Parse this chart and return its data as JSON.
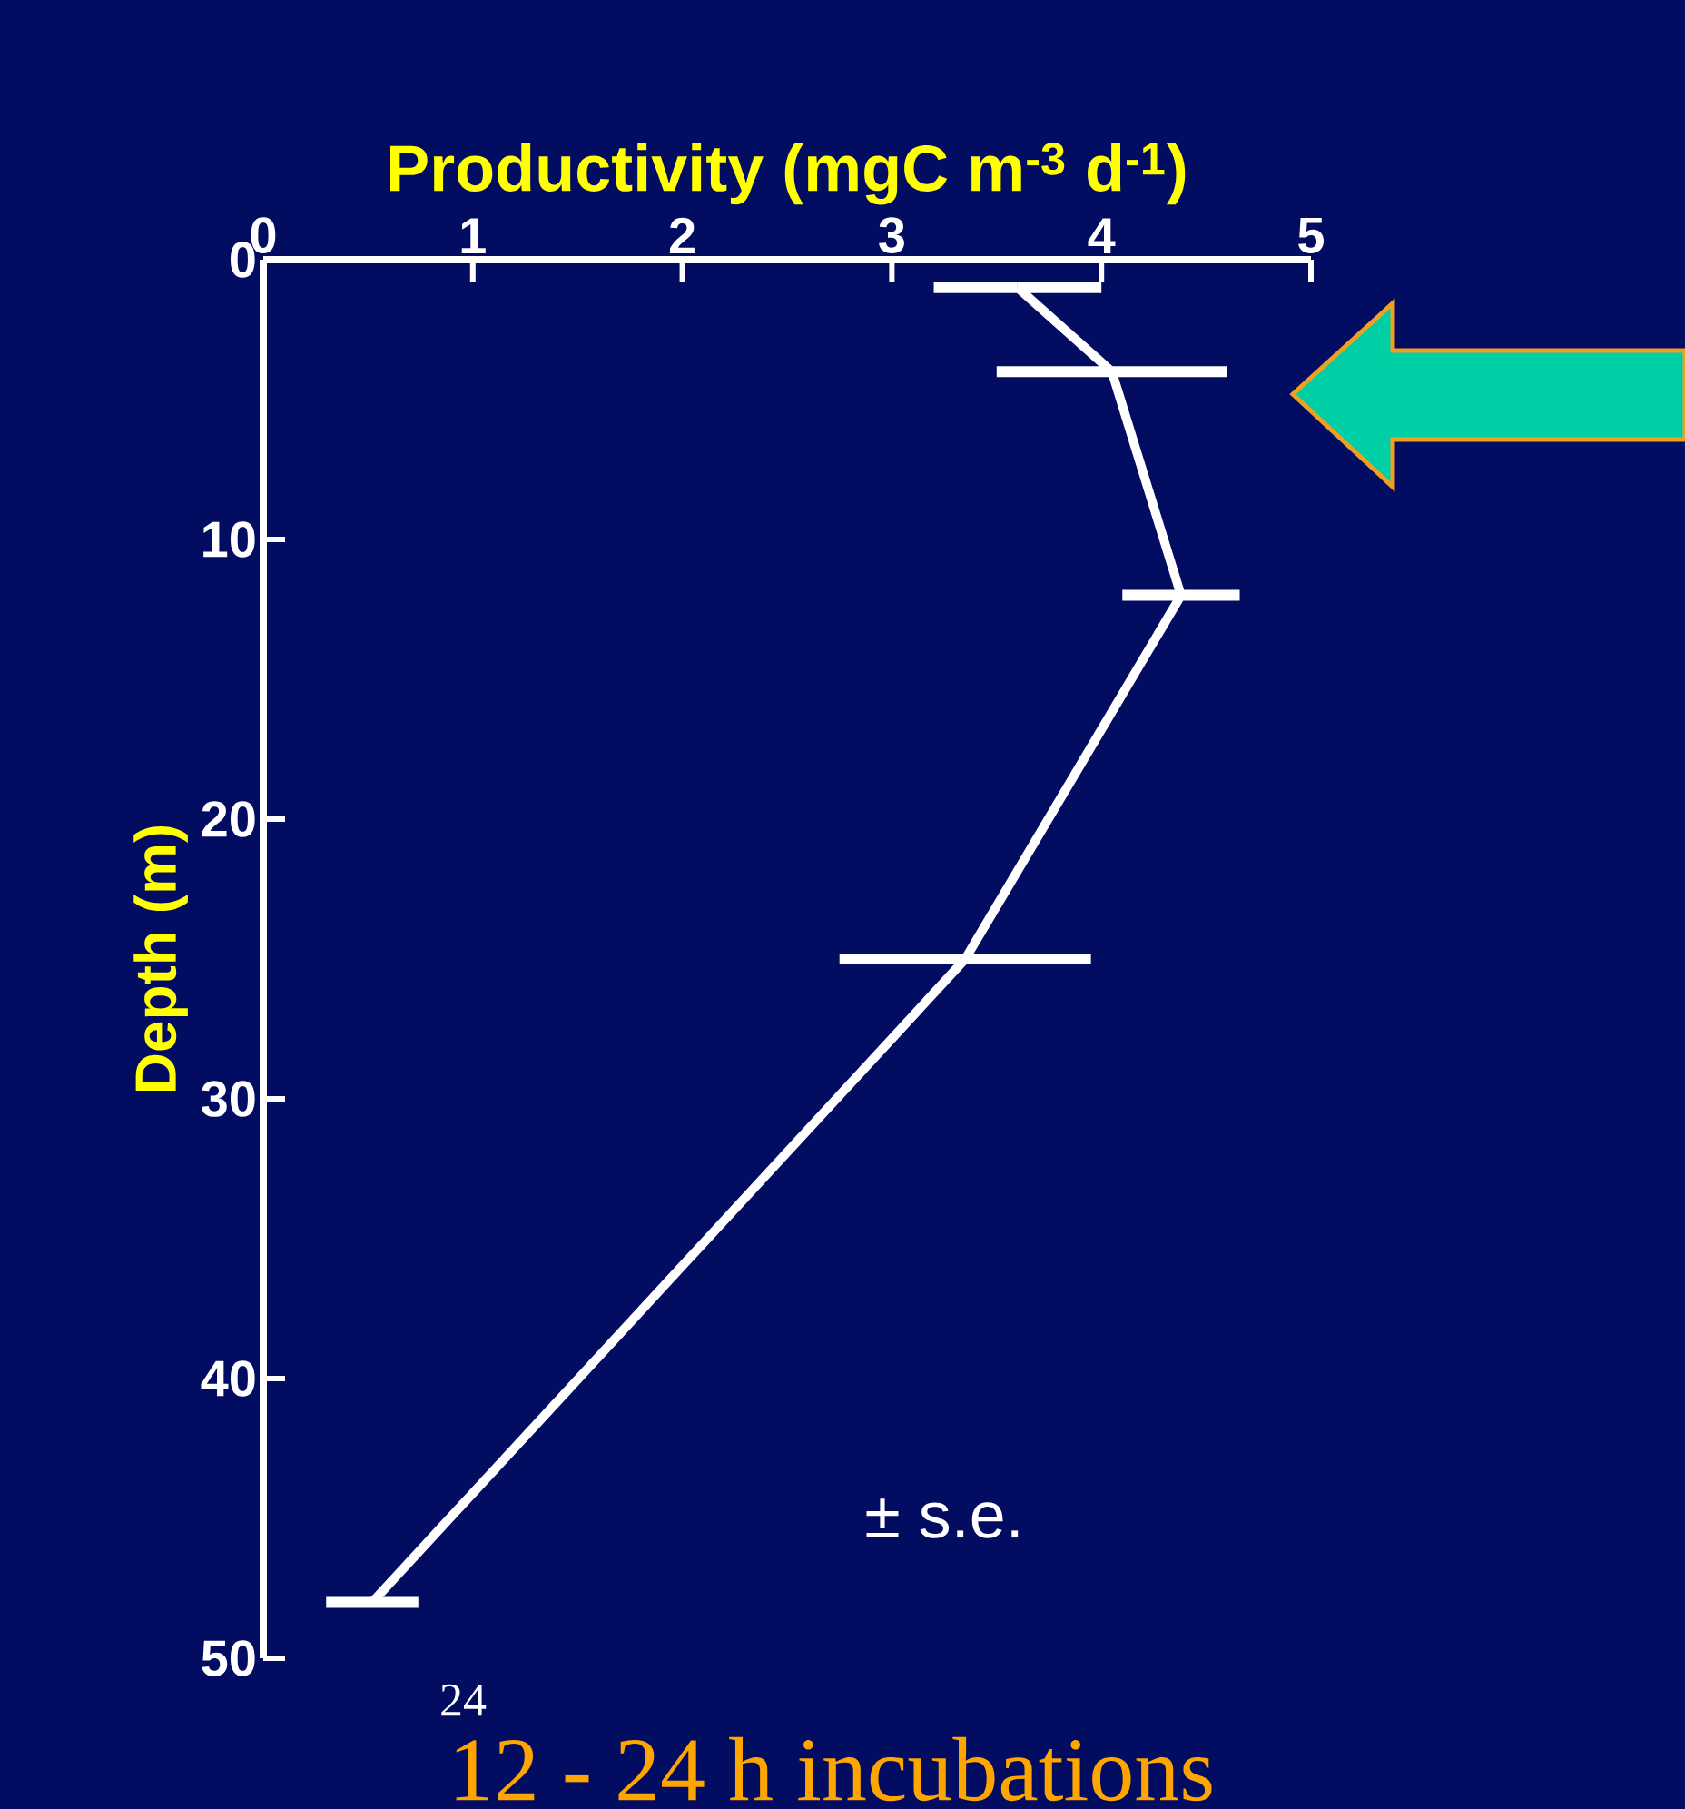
{
  "chart_data": {
    "type": "line",
    "xlabel": "Productivity (mgC m$^{-3}$ d$^{-1}$)",
    "ylabel": "Depth (m)",
    "x": [
      3.6,
      4.05,
      4.38,
      3.35,
      0.52
    ],
    "series": [
      {
        "color": "#ffffff",
        "values": [
          1,
          4,
          12,
          25,
          48
        ],
        "xerrors": [
          0.4,
          0.55,
          0.28,
          0.6,
          0.22
        ]
      }
    ],
    "xlim": [
      0,
      5
    ],
    "xticks": [
      0,
      1,
      2,
      3,
      4,
      5
    ],
    "ylim": [
      50,
      0
    ],
    "yticks": [
      0,
      10,
      20,
      30,
      40,
      50
    ],
    "marker": "none",
    "line_style": "solid",
    "annotations": [
      "± s.e.",
      "12 - 24 h incubations",
      "24"
    ]
  }
}
